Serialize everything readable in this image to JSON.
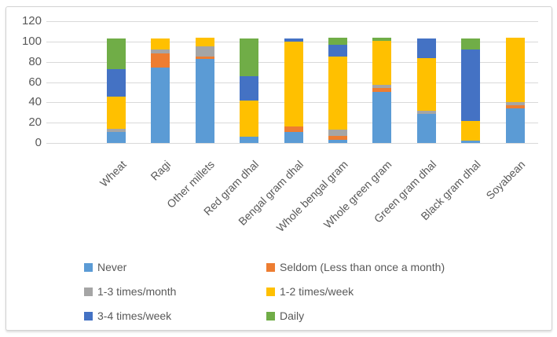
{
  "chart_data": {
    "type": "bar",
    "subtype": "stacked-column",
    "title": "",
    "xlabel": "",
    "ylabel": "",
    "categories": [
      "Wheat",
      "Ragi",
      "Other millets",
      "Red gram dhal",
      "Bengal gram dhal",
      "Whole bengal gram",
      "Whole green gram",
      "Green gram dhal",
      "Black gram dhal",
      "Soyabean"
    ],
    "series": [
      {
        "name": "Never",
        "color": "#5B9BD5",
        "values": [
          11,
          74,
          83,
          6,
          11,
          3,
          50,
          29,
          2,
          34
        ]
      },
      {
        "name": "Seldom (Less than once a month)",
        "color": "#ED7D31",
        "values": [
          0,
          14,
          2,
          0,
          5,
          4,
          4,
          0,
          0,
          3
        ]
      },
      {
        "name": "1-3 times/month",
        "color": "#A5A5A5",
        "values": [
          3,
          4,
          10,
          0,
          0,
          6,
          3,
          3,
          0,
          3
        ]
      },
      {
        "name": "1-2 times/week",
        "color": "#FFC000",
        "values": [
          32,
          11,
          9,
          36,
          84,
          72,
          44,
          52,
          20,
          64
        ]
      },
      {
        "name": "3-4 times/week",
        "color": "#4472C4",
        "values": [
          27,
          0,
          0,
          24,
          3,
          12,
          0,
          19,
          70,
          0
        ]
      },
      {
        "name": "Daily",
        "color": "#70AD47",
        "values": [
          30,
          0,
          0,
          37,
          0,
          7,
          3,
          0,
          11,
          0
        ]
      }
    ],
    "yticks": [
      0,
      20,
      40,
      60,
      80,
      100,
      120
    ],
    "ylim": [
      0,
      120
    ],
    "grid": true,
    "legend_position": "bottom",
    "legend_columns": 2
  },
  "colors": {
    "gridline": "#d9d9d9",
    "axis_text": "#595959",
    "frame_border": "#d2d2d2",
    "background": "#ffffff"
  }
}
